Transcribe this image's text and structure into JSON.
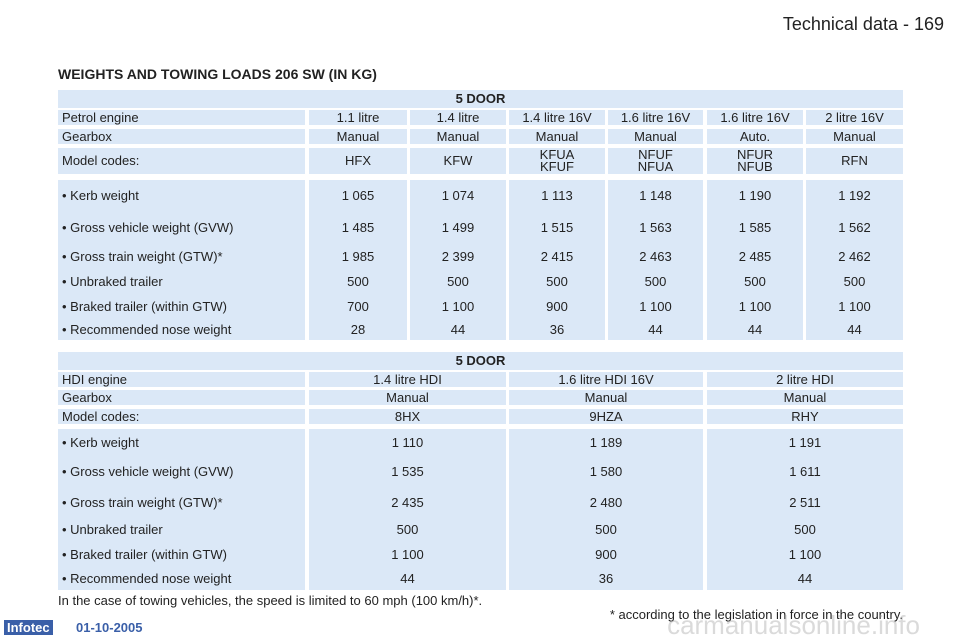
{
  "header": {
    "title": "Technical data - 169"
  },
  "heading": "WEIGHTS AND TOWING LOADS 206 SW (IN KG)",
  "tables": [
    {
      "caption": "5 DOOR",
      "rows": [
        [
          "Petrol engine",
          "1.1 litre",
          "1.4 litre",
          "1.4 litre 16V",
          "1.6 litre 16V",
          "1.6 litre 16V",
          "2 litre 16V"
        ],
        [
          "Gearbox",
          "Manual",
          "Manual",
          "Manual",
          "Manual",
          "Auto.",
          "Manual"
        ],
        [
          "Model codes:",
          "HFX",
          "KFW",
          "KFUA\nKFUF",
          "NFUF\nNFUA",
          "NFUR\nNFUB",
          "RFN"
        ],
        [
          "• Kerb weight",
          "1 065",
          "1 074",
          "1 113",
          "1 148",
          "1 190",
          "1 192"
        ],
        [
          "• Gross vehicle weight (GVW)",
          "1 485",
          "1 499",
          "1 515",
          "1 563",
          "1 585",
          "1 562"
        ],
        [
          "• Gross train weight (GTW)*",
          "1 985",
          "2 399",
          "2 415",
          "2 463",
          "2 485",
          "2 462"
        ],
        [
          "• Unbraked trailer",
          "500",
          "500",
          "500",
          "500",
          "500",
          "500"
        ],
        [
          "• Braked trailer (within GTW)",
          "700",
          "1 100",
          "900",
          "1 100",
          "1 100",
          "1 100"
        ],
        [
          "• Recommended nose weight",
          "28",
          "44",
          "36",
          "44",
          "44",
          "44"
        ]
      ]
    },
    {
      "caption": "5 DOOR",
      "rows": [
        [
          "HDI engine",
          "1.4 litre HDI",
          "1.6 litre HDI 16V",
          "2 litre HDI"
        ],
        [
          "Gearbox",
          "Manual",
          "Manual",
          "Manual"
        ],
        [
          "Model codes:",
          "8HX",
          "9HZA",
          "RHY"
        ],
        [
          "• Kerb weight",
          "1 110",
          "1 189",
          "1 191"
        ],
        [
          "• Gross vehicle weight (GVW)",
          "1 535",
          "1 580",
          "1 611"
        ],
        [
          "• Gross train weight (GTW)*",
          "2 435",
          "2 480",
          "2 511"
        ],
        [
          "• Unbraked trailer",
          "500",
          "500",
          "500"
        ],
        [
          "• Braked trailer (within GTW)",
          "1 100",
          "900",
          "1 100"
        ],
        [
          "• Recommended nose weight",
          "44",
          "36",
          "44"
        ]
      ]
    }
  ],
  "footnotes": [
    "In the case of towing vehicles, the speed is limited to 60 mph (100 km/h)*.",
    "* according to the legislation in force in the country."
  ],
  "footer": {
    "logo": "Infotec",
    "date": "01-10-2005",
    "watermark": "carmanualsonline.info"
  }
}
